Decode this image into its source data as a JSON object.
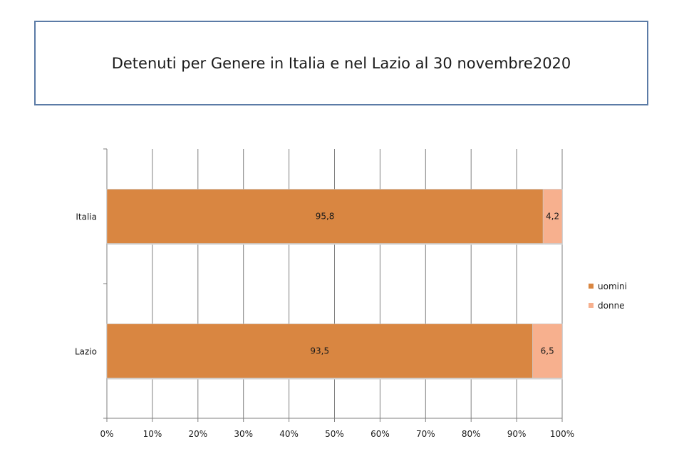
{
  "title": "Detenuti per Genere in Italia e nel Lazio al 30 novembre2020",
  "colors": {
    "uomini": "#d98641",
    "donne": "#f7b08e",
    "grid": "#7f7f7f",
    "bar_edge": "#c9c9c9"
  },
  "chart_data": {
    "type": "bar",
    "orientation": "horizontal",
    "stacked": "percent",
    "categories": [
      "Italia",
      "Lazio"
    ],
    "series": [
      {
        "name": "uomini",
        "values": [
          95.8,
          93.5
        ],
        "labels": [
          "95,8",
          "93,5"
        ]
      },
      {
        "name": "donne",
        "values": [
          4.2,
          6.5
        ],
        "labels": [
          "4,2",
          "6,5"
        ]
      }
    ],
    "xlim": [
      0,
      100
    ],
    "x_ticks": [
      "0%",
      "10%",
      "20%",
      "30%",
      "40%",
      "50%",
      "60%",
      "70%",
      "80%",
      "90%",
      "100%"
    ],
    "grid": true,
    "legend_position": "right"
  }
}
